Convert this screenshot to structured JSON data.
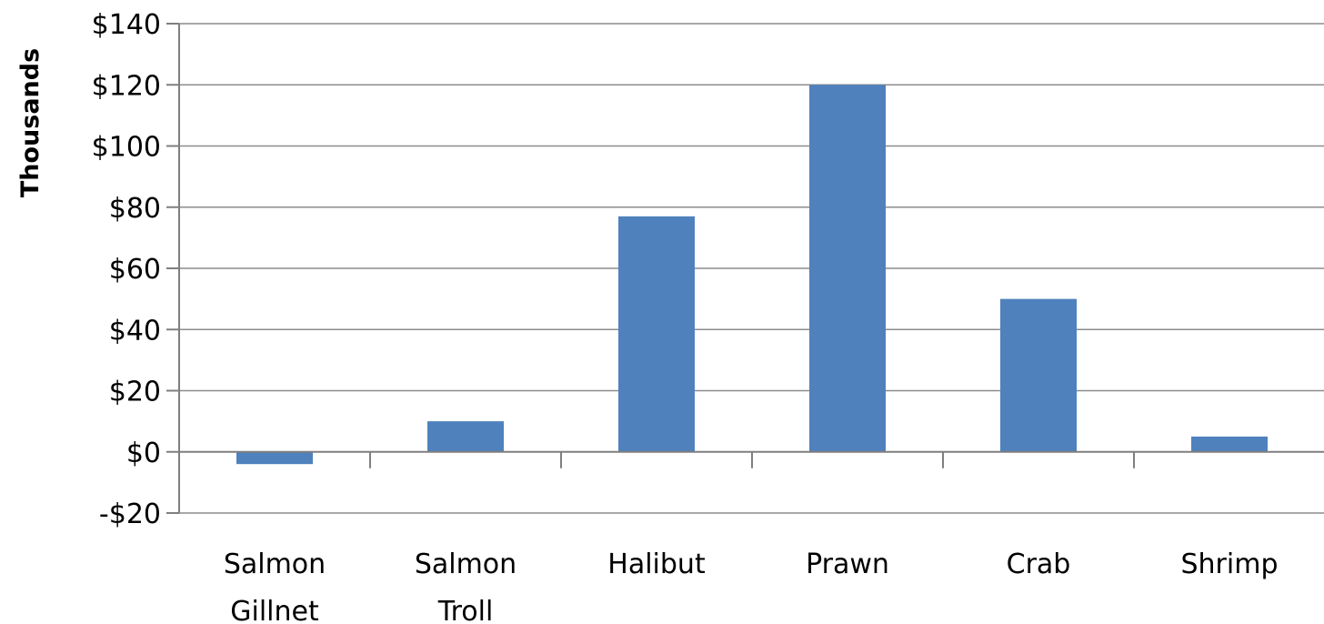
{
  "chart_data": {
    "type": "bar",
    "categories": [
      [
        "Salmon",
        "Gillnet"
      ],
      [
        "Salmon",
        "Troll"
      ],
      [
        "Halibut"
      ],
      [
        "Prawn"
      ],
      [
        "Crab"
      ],
      [
        "Shrimp"
      ]
    ],
    "values": [
      -4,
      10,
      77,
      120,
      50,
      5
    ],
    "ylabel": "Thousands",
    "ylim": [
      -20,
      140
    ],
    "yticks": [
      {
        "value": 140,
        "label": "$140"
      },
      {
        "value": 120,
        "label": "$120"
      },
      {
        "value": 100,
        "label": "$100"
      },
      {
        "value": 80,
        "label": "$80"
      },
      {
        "value": 60,
        "label": "$60"
      },
      {
        "value": 40,
        "label": "$40"
      },
      {
        "value": 20,
        "label": "$20"
      },
      {
        "value": 0,
        "label": "$0"
      },
      {
        "value": -20,
        "label": "-$20"
      }
    ],
    "grid": true,
    "legend": "none",
    "colors": {
      "bar": "#4f81bd",
      "negative_tick_label": "#ff0000",
      "tick_label": "#000000",
      "gridline": "#8c8c8c"
    }
  }
}
